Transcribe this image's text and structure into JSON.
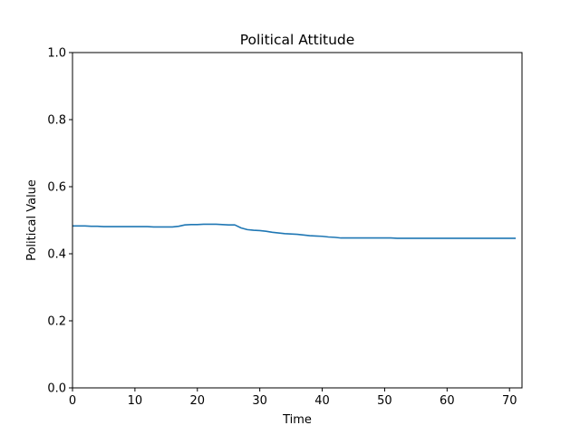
{
  "chart_data": {
    "type": "line",
    "title": "Political Attitude",
    "xlabel": "Time",
    "ylabel": "Political Value",
    "xlim": [
      0,
      72
    ],
    "ylim": [
      0,
      1
    ],
    "xticks": [
      0,
      10,
      20,
      30,
      40,
      50,
      60,
      70
    ],
    "yticks": [
      "0.0",
      "0.2",
      "0.4",
      "0.6",
      "0.8",
      "1.0"
    ],
    "grid": false,
    "line_color": "#1f77b4",
    "series": [
      {
        "x": [
          0,
          1,
          2,
          3,
          4,
          5,
          6,
          7,
          8,
          9,
          10,
          11,
          12,
          13,
          14,
          15,
          16,
          17,
          18,
          19,
          20,
          21,
          22,
          23,
          24,
          25,
          26,
          27,
          28,
          29,
          30,
          31,
          32,
          33,
          34,
          35,
          36,
          37,
          38,
          39,
          40,
          41,
          42,
          43,
          44,
          45,
          46,
          47,
          48,
          49,
          50,
          51,
          52,
          53,
          54,
          55,
          56,
          57,
          58,
          59,
          60,
          61,
          62,
          63,
          64,
          65,
          66,
          67,
          68,
          69,
          70,
          71
        ],
        "values": [
          0.483,
          0.483,
          0.483,
          0.482,
          0.482,
          0.481,
          0.481,
          0.481,
          0.481,
          0.481,
          0.481,
          0.481,
          0.481,
          0.48,
          0.48,
          0.48,
          0.48,
          0.482,
          0.486,
          0.487,
          0.487,
          0.488,
          0.488,
          0.488,
          0.487,
          0.486,
          0.486,
          0.477,
          0.472,
          0.47,
          0.469,
          0.467,
          0.464,
          0.462,
          0.46,
          0.459,
          0.458,
          0.456,
          0.454,
          0.453,
          0.452,
          0.45,
          0.449,
          0.447,
          0.447,
          0.447,
          0.447,
          0.447,
          0.447,
          0.447,
          0.447,
          0.447,
          0.446,
          0.446,
          0.446,
          0.446,
          0.446,
          0.446,
          0.446,
          0.446,
          0.446,
          0.446,
          0.446,
          0.446,
          0.446,
          0.446,
          0.446,
          0.446,
          0.446,
          0.446,
          0.446,
          0.446
        ]
      }
    ]
  }
}
